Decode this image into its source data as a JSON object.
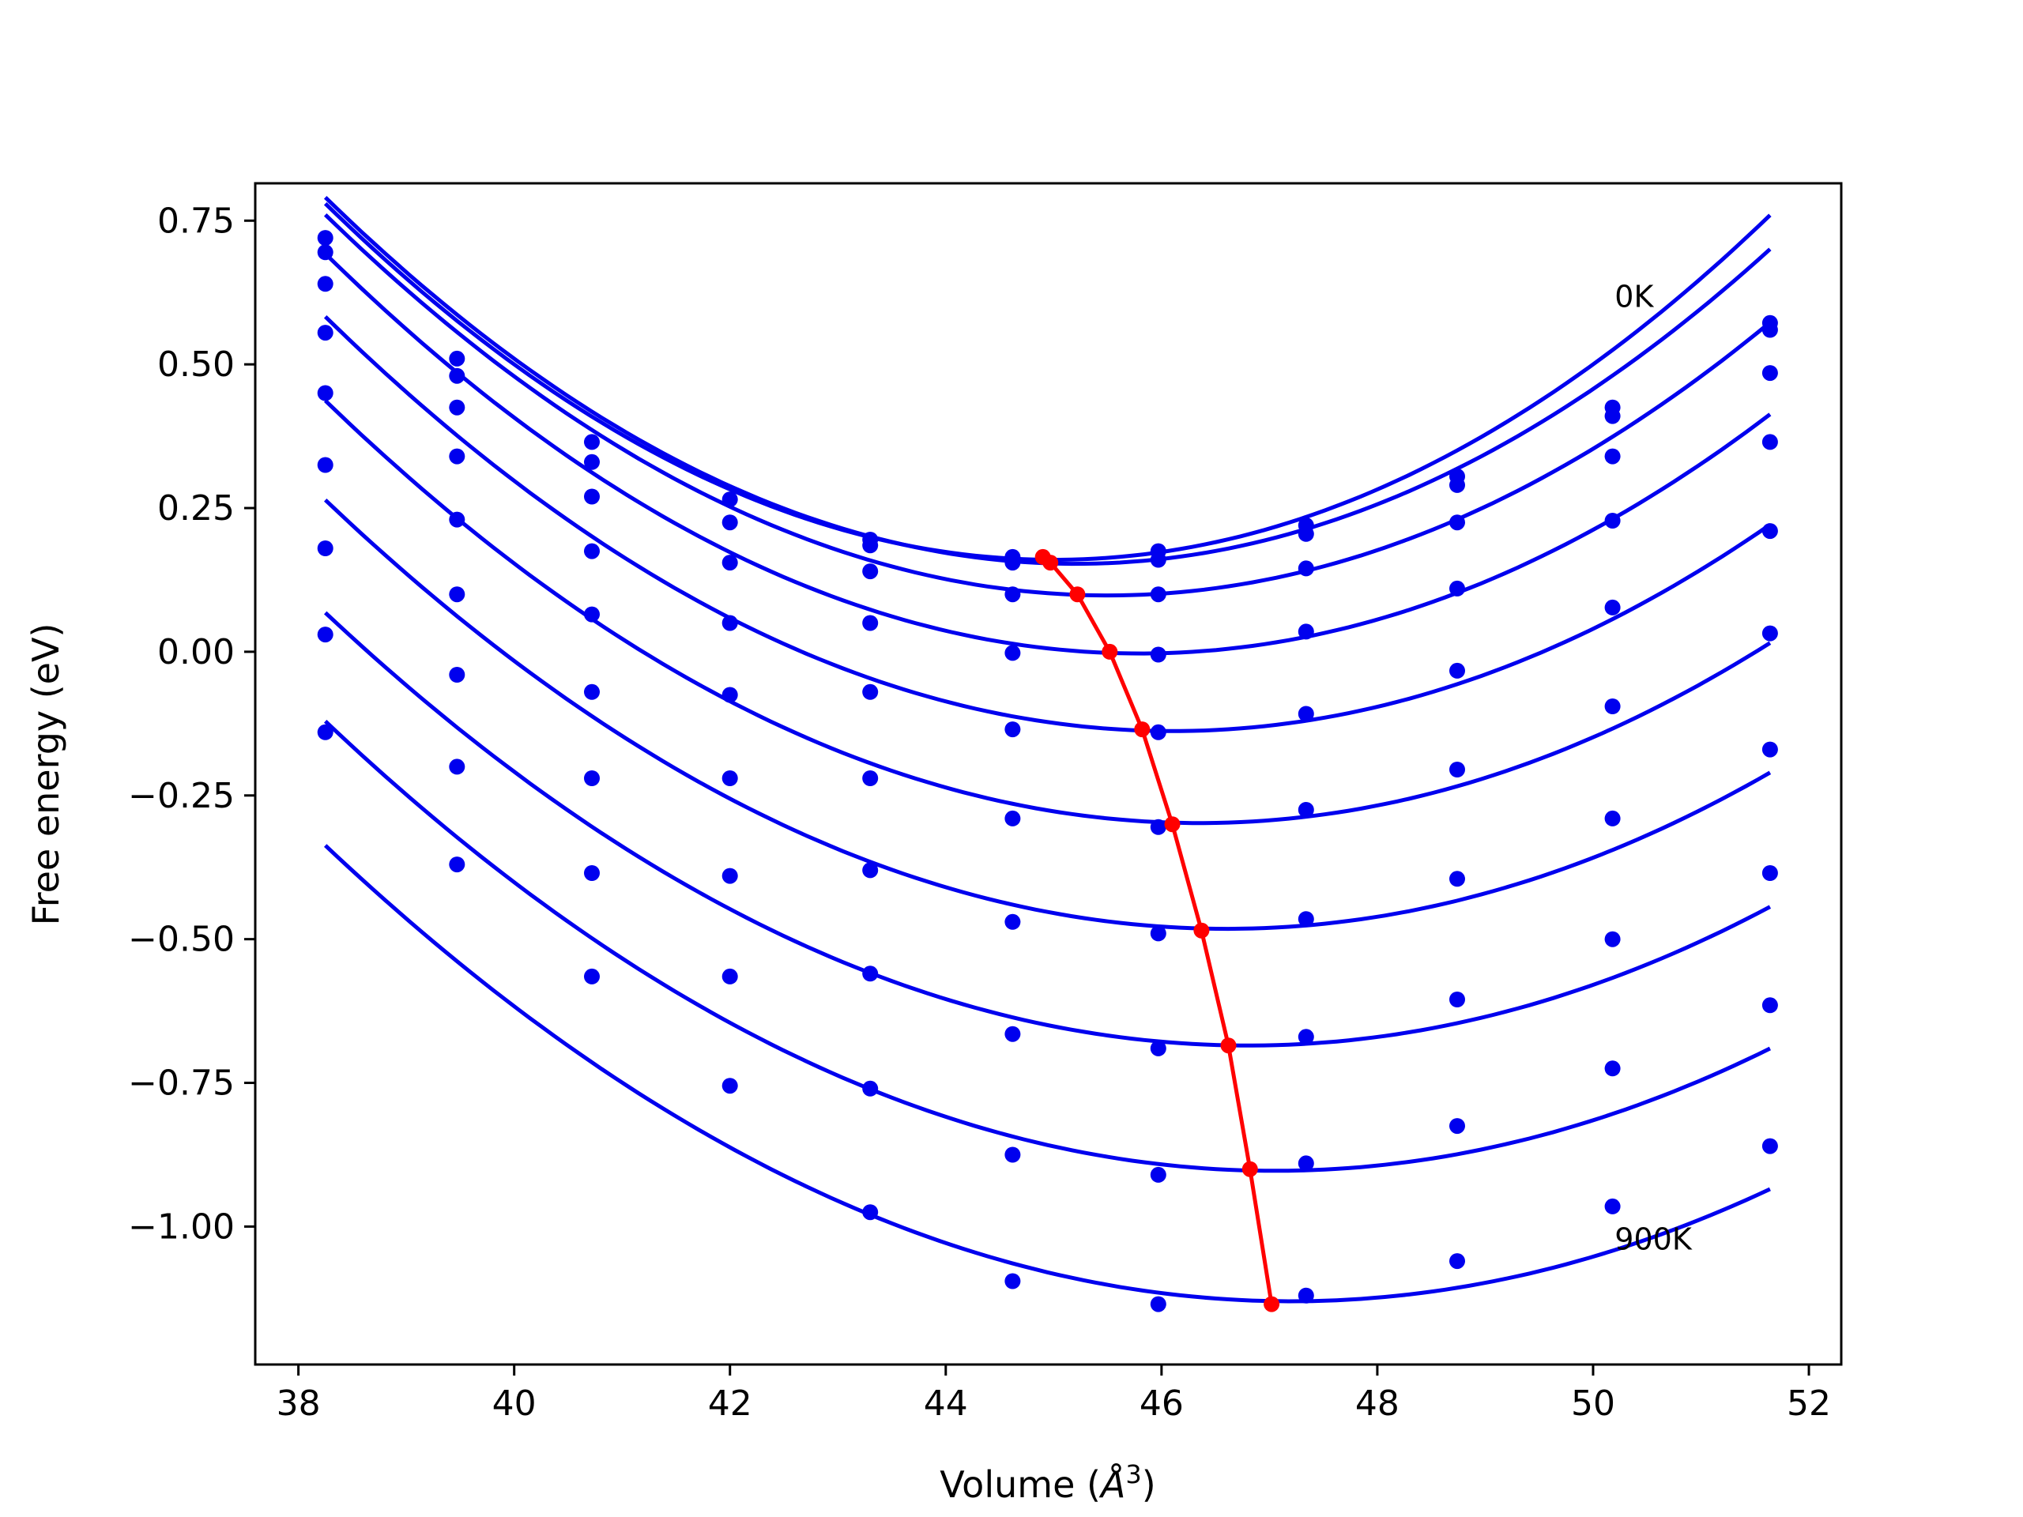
{
  "chart_data": {
    "type": "line",
    "xlabel_main": "Volume (",
    "xlabel_sym": "Å",
    "xlabel_sup": "3",
    "xlabel_close": ")",
    "ylabel": "Free energy (eV)",
    "xlim": [
      37.6,
      52.3
    ],
    "ylim": [
      -1.24,
      0.815
    ],
    "xticks": [
      38,
      40,
      42,
      44,
      46,
      48,
      50,
      52
    ],
    "xtick_labels": [
      "38",
      "40",
      "42",
      "44",
      "46",
      "48",
      "50",
      "52"
    ],
    "yticks": [
      0.75,
      0.5,
      0.25,
      0.0,
      -0.25,
      -0.5,
      -0.75,
      -1.0
    ],
    "ytick_labels": [
      "0.75",
      "0.50",
      "0.25",
      "0.00",
      "−0.25",
      "−0.50",
      "−0.75",
      "−1.00"
    ],
    "annotations": [
      {
        "text": "0K",
        "x": 50.2,
        "y": 0.6
      },
      {
        "text": "900K",
        "x": 50.2,
        "y": -1.04
      }
    ],
    "curve_color": "#0000ee",
    "min_line_color": "#ff0000",
    "volumes": [
      38.25,
      39.47,
      40.72,
      42.0,
      43.3,
      44.62,
      45.97,
      47.34,
      48.74,
      50.18,
      51.64
    ],
    "series": [
      {
        "points": [
          0.72,
          0.51,
          0.365,
          0.265,
          0.195,
          0.165,
          0.175,
          0.22,
          0.305,
          0.425,
          0.572
        ],
        "fit": {
          "a": 0.0136,
          "v0": 45.0,
          "e0": 0.16
        }
      },
      {
        "points": [
          0.695,
          0.48,
          0.33,
          0.225,
          0.185,
          0.155,
          0.16,
          0.205,
          0.29,
          0.41,
          0.56
        ],
        "fit": {
          "a": 0.0132,
          "v0": 45.2,
          "e0": 0.153
        }
      },
      {
        "points": [
          0.64,
          0.425,
          0.27,
          0.155,
          0.14,
          0.1,
          0.1,
          0.145,
          0.225,
          0.34,
          0.485
        ],
        "fit": {
          "a": 0.0126,
          "v0": 45.5,
          "e0": 0.098
        }
      },
      {
        "points": [
          0.555,
          0.34,
          0.175,
          0.05,
          0.05,
          -0.002,
          -0.005,
          0.035,
          0.11,
          0.228,
          0.365
        ],
        "fit": {
          "a": 0.0122,
          "v0": 45.8,
          "e0": -0.003
        }
      },
      {
        "points": [
          0.45,
          0.23,
          0.065,
          -0.075,
          -0.07,
          -0.135,
          -0.14,
          -0.108,
          -0.033,
          0.077,
          0.21
        ],
        "fit": {
          "a": 0.0117,
          "v0": 46.1,
          "e0": -0.138
        }
      },
      {
        "points": [
          0.325,
          0.1,
          -0.07,
          -0.22,
          -0.22,
          -0.29,
          -0.305,
          -0.275,
          -0.205,
          -0.095,
          0.032
        ],
        "fit": {
          "a": 0.0112,
          "v0": 46.35,
          "e0": -0.298
        }
      },
      {
        "points": [
          0.18,
          -0.04,
          -0.22,
          -0.39,
          -0.38,
          -0.47,
          -0.49,
          -0.465,
          -0.395,
          -0.29,
          -0.17
        ],
        "fit": {
          "a": 0.0107,
          "v0": 46.6,
          "e0": -0.482
        }
      },
      {
        "points": [
          0.03,
          -0.2,
          -0.385,
          -0.565,
          -0.56,
          -0.665,
          -0.69,
          -0.67,
          -0.605,
          -0.5,
          -0.385
        ],
        "fit": {
          "a": 0.0103,
          "v0": 46.8,
          "e0": -0.685
        }
      },
      {
        "points": [
          -0.14,
          -0.37,
          -0.565,
          -0.755,
          -0.76,
          -0.875,
          -0.91,
          -0.89,
          -0.825,
          -0.725,
          -0.615
        ],
        "fit": {
          "a": 0.0101,
          "v0": 47.05,
          "e0": -0.903
        }
      },
      {
        "points": [
          null,
          null,
          null,
          null,
          -0.975,
          -1.095,
          -1.135,
          -1.12,
          -1.06,
          -0.965,
          -0.86
        ],
        "fit": {
          "a": 0.0099,
          "v0": 47.2,
          "e0": -1.13
        }
      }
    ],
    "minima_line": {
      "x": [
        44.9,
        44.97,
        45.22,
        45.52,
        45.82,
        46.1,
        46.37,
        46.62,
        46.82,
        47.02
      ],
      "y": [
        0.165,
        0.155,
        0.1,
        0.0,
        -0.135,
        -0.3,
        -0.485,
        -0.685,
        -0.9,
        -1.135
      ]
    }
  }
}
